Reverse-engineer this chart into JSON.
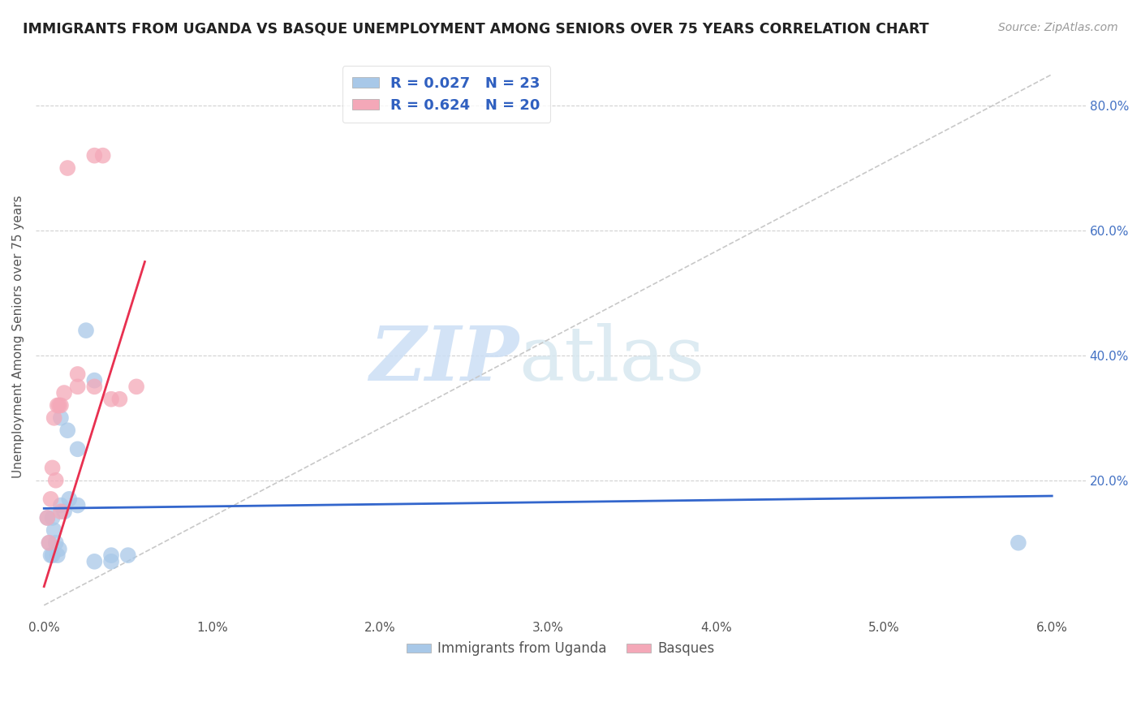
{
  "title": "IMMIGRANTS FROM UGANDA VS BASQUE UNEMPLOYMENT AMONG SENIORS OVER 75 YEARS CORRELATION CHART",
  "source": "Source: ZipAtlas.com",
  "ylabel": "Unemployment Among Seniors over 75 years",
  "right_ytick_vals": [
    0.2,
    0.4,
    0.6,
    0.8
  ],
  "right_ytick_labels": [
    "20.0%",
    "40.0%",
    "60.0%",
    "80.0%"
  ],
  "legend_blue_label": "R = 0.027   N = 23",
  "legend_pink_label": "R = 0.624   N = 20",
  "legend_bottom_blue": "Immigrants from Uganda",
  "legend_bottom_pink": "Basques",
  "watermark_zip": "ZIP",
  "watermark_atlas": "atlas",
  "blue_color": "#a8c8e8",
  "pink_color": "#f4a8b8",
  "blue_line_color": "#3366cc",
  "pink_line_color": "#e83050",
  "diag_line_color": "#c8c8c8",
  "blue_scatter_x": [
    0.0002,
    0.0003,
    0.0004,
    0.0005,
    0.0005,
    0.0006,
    0.0007,
    0.0008,
    0.0009,
    0.001,
    0.001,
    0.0012,
    0.0014,
    0.0015,
    0.002,
    0.002,
    0.0025,
    0.003,
    0.003,
    0.004,
    0.004,
    0.005,
    0.058
  ],
  "blue_scatter_y": [
    0.14,
    0.1,
    0.08,
    0.14,
    0.08,
    0.12,
    0.1,
    0.08,
    0.09,
    0.16,
    0.3,
    0.15,
    0.28,
    0.17,
    0.25,
    0.16,
    0.44,
    0.07,
    0.36,
    0.07,
    0.08,
    0.08,
    0.1
  ],
  "pink_scatter_x": [
    0.0002,
    0.0003,
    0.0004,
    0.0005,
    0.0006,
    0.0007,
    0.0008,
    0.0009,
    0.001,
    0.001,
    0.0012,
    0.0014,
    0.002,
    0.002,
    0.003,
    0.003,
    0.0035,
    0.004,
    0.0045,
    0.0055
  ],
  "pink_scatter_y": [
    0.14,
    0.1,
    0.17,
    0.22,
    0.3,
    0.2,
    0.32,
    0.32,
    0.32,
    0.15,
    0.34,
    0.7,
    0.37,
    0.35,
    0.35,
    0.72,
    0.72,
    0.33,
    0.33,
    0.35
  ],
  "blue_line_x": [
    0.0,
    0.06
  ],
  "blue_line_y": [
    0.155,
    0.175
  ],
  "pink_line_x": [
    0.0,
    0.006
  ],
  "pink_line_y": [
    0.03,
    0.55
  ],
  "diag_line_x": [
    0.0,
    0.06
  ],
  "diag_line_y": [
    0.0,
    0.85
  ],
  "xlim": [
    -0.0005,
    0.062
  ],
  "ylim": [
    -0.02,
    0.88
  ],
  "xtick_vals": [
    0.0,
    0.01,
    0.02,
    0.03,
    0.04,
    0.05,
    0.06
  ],
  "xtick_labels": [
    "0.0%",
    "1.0%",
    "2.0%",
    "3.0%",
    "4.0%",
    "5.0%",
    "6.0%"
  ]
}
